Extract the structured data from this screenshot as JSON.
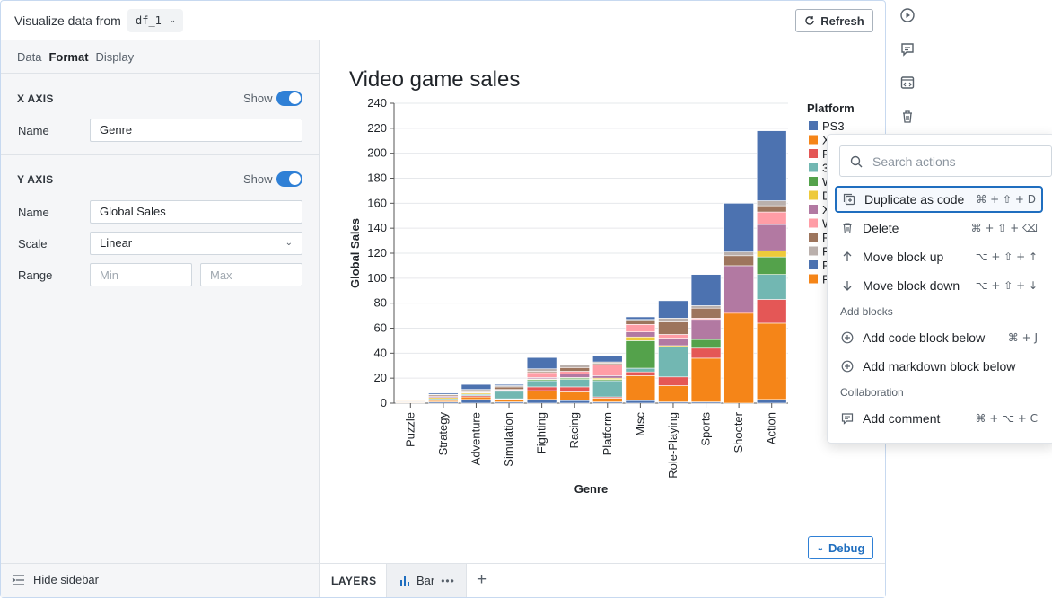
{
  "header": {
    "visualize_label": "Visualize data from",
    "dataframe": "df_1",
    "refresh_label": "Refresh"
  },
  "sidebar": {
    "tabs": [
      "Data",
      "Format",
      "Display"
    ],
    "active_tab": "Format",
    "x_axis": {
      "title": "X AXIS",
      "show_label": "Show",
      "show": true,
      "name_label": "Name",
      "name_value": "Genre"
    },
    "y_axis": {
      "title": "Y AXIS",
      "show_label": "Show",
      "show": true,
      "name_label": "Name",
      "name_value": "Global Sales",
      "scale_label": "Scale",
      "scale_value": "Linear",
      "range_label": "Range",
      "min_placeholder": "Min",
      "max_placeholder": "Max"
    },
    "hide_sidebar": "Hide sidebar"
  },
  "footer": {
    "layers": "LAYERS",
    "layer_name": "Bar",
    "debug": "Debug"
  },
  "chart_data": {
    "type": "bar",
    "stacked": true,
    "title": "Video game sales",
    "xlabel": "Genre",
    "ylabel": "Global Sales",
    "ylim": [
      0,
      240
    ],
    "yticks": [
      0,
      20,
      40,
      60,
      80,
      100,
      120,
      140,
      160,
      180,
      200,
      220,
      240
    ],
    "grid": true,
    "legend_title": "Platform",
    "legend_placement": "right",
    "categories": [
      "Puzzle",
      "Strategy",
      "Adventure",
      "Simulation",
      "Fighting",
      "Racing",
      "Platform",
      "Misc",
      "Role-Playing",
      "Sports",
      "Shooter",
      "Action"
    ],
    "series": [
      {
        "name": "PS3",
        "color": "#4c72b0",
        "values": [
          0,
          1,
          3,
          1,
          3,
          2,
          1,
          2,
          1,
          1,
          0,
          3
        ]
      },
      {
        "name": "X",
        "color": "#f58518",
        "values": [
          0.5,
          1,
          2,
          2,
          7,
          7,
          3,
          20,
          13,
          35,
          72,
          61
        ]
      },
      {
        "name": "P",
        "color": "#e45756",
        "values": [
          0,
          0.5,
          1,
          0.5,
          3,
          4,
          1,
          3,
          7,
          8,
          1,
          19
        ]
      },
      {
        "name": "3",
        "color": "#72b7b2",
        "values": [
          0.5,
          1,
          1,
          6,
          5,
          6,
          13,
          3,
          24,
          0,
          0,
          20
        ]
      },
      {
        "name": "W",
        "color": "#54a24b",
        "values": [
          0,
          0,
          0,
          0,
          1,
          1,
          1,
          22,
          0,
          7,
          0,
          14
        ]
      },
      {
        "name": "D",
        "color": "#eeca3b",
        "values": [
          0,
          1,
          1,
          0.5,
          0.5,
          0.5,
          1,
          3,
          1,
          0,
          0,
          5
        ]
      },
      {
        "name": "X",
        "color": "#b279a2",
        "values": [
          0,
          1,
          0.5,
          0.5,
          1,
          3,
          2,
          4,
          6,
          16,
          37,
          21
        ]
      },
      {
        "name": "W",
        "color": "#ff9da6",
        "values": [
          0,
          0,
          0.5,
          0.5,
          4,
          2,
          9,
          6,
          3,
          1,
          0,
          10
        ]
      },
      {
        "name": "P",
        "color": "#9d755d",
        "values": [
          0.5,
          1,
          1,
          2,
          1,
          3,
          1,
          3,
          10,
          8,
          8,
          5
        ]
      },
      {
        "name": "P",
        "color": "#bab0ac",
        "values": [
          0,
          0.5,
          1,
          1,
          2,
          2,
          1,
          1,
          3,
          2,
          3,
          4
        ]
      },
      {
        "name": "P",
        "color": "#4c72b0",
        "values": [
          0,
          1,
          4,
          1,
          9,
          0,
          5,
          2,
          14,
          25,
          39,
          56
        ]
      },
      {
        "name": "P",
        "color": "#f58518",
        "values": [
          0.5,
          0,
          0,
          0,
          0,
          0,
          0,
          0,
          0,
          0,
          0,
          0
        ]
      }
    ]
  },
  "actions_menu": {
    "search_placeholder": "Search actions",
    "items": [
      {
        "label": "Duplicate as code",
        "shortcut": "⌘ + ⇧ + D",
        "icon": "duplicate-icon"
      },
      {
        "label": "Delete",
        "shortcut": "⌘ + ⇧ + ⌫",
        "icon": "trash-icon"
      },
      {
        "label": "Move block up",
        "shortcut": "⌥ + ⇧ + ↑",
        "icon": "arrow-up-icon"
      },
      {
        "label": "Move block down",
        "shortcut": "⌥ + ⇧ + ↓",
        "icon": "arrow-down-icon"
      }
    ],
    "add_blocks_heading": "Add blocks",
    "add_items": [
      {
        "label": "Add code block below",
        "shortcut": "⌘ + J",
        "icon": "plus-circle-icon"
      },
      {
        "label": "Add markdown block below",
        "shortcut": "",
        "icon": "plus-circle-icon"
      }
    ],
    "collaboration_heading": "Collaboration",
    "collab_items": [
      {
        "label": "Add comment",
        "shortcut": "⌘ + ⌥ + C",
        "icon": "comment-icon"
      }
    ]
  }
}
